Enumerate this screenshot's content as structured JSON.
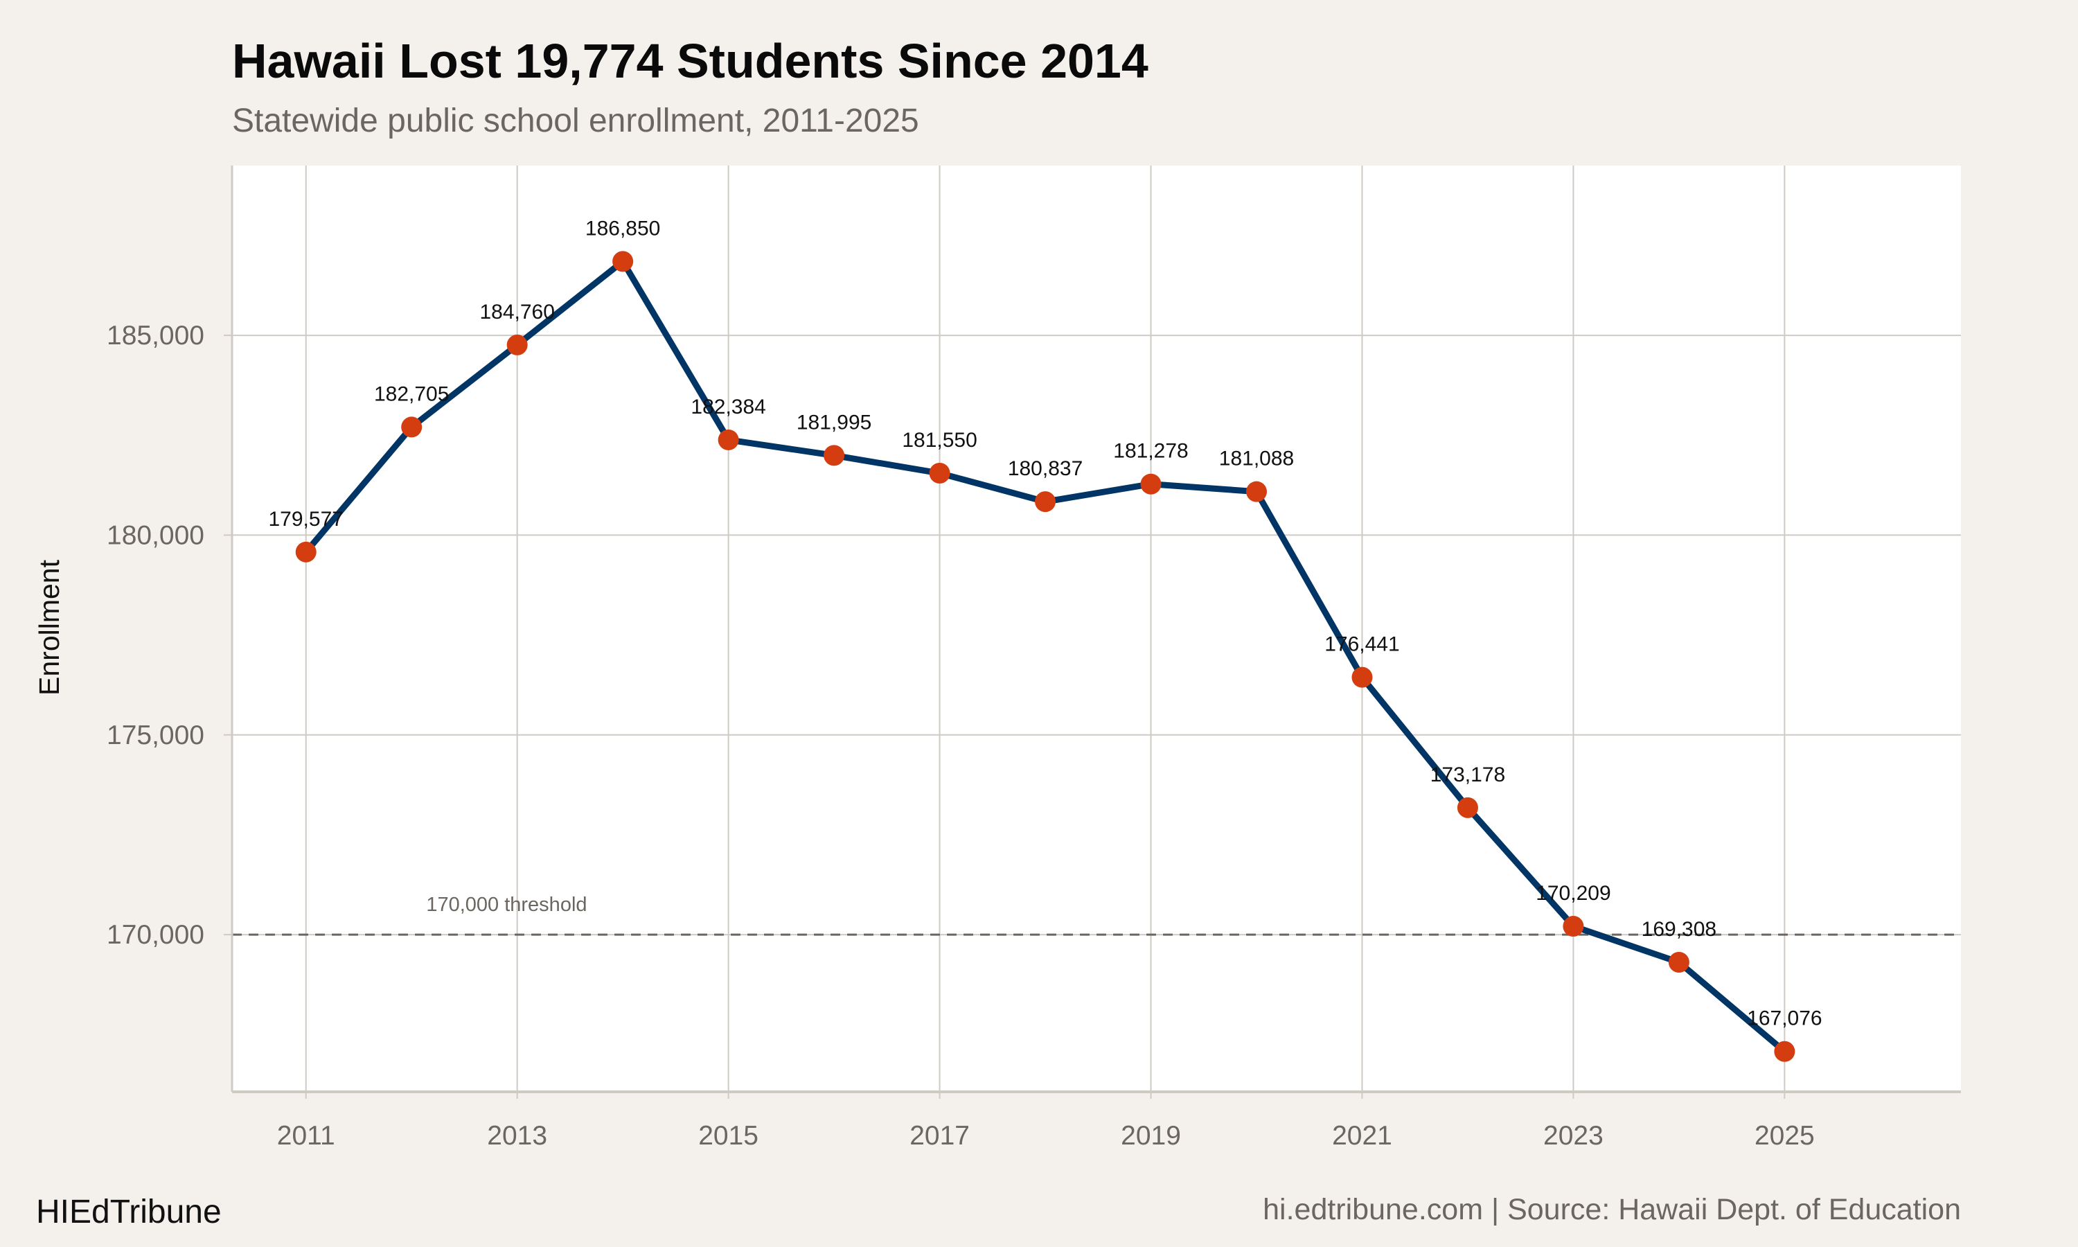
{
  "chart_data": {
    "type": "line",
    "title": "Hawaii Lost 19,774 Students Since 2014",
    "subtitle": "Statewide public school enrollment, 2011-2025",
    "xlabel": "",
    "ylabel": "Enrollment",
    "x": [
      2011,
      2012,
      2013,
      2014,
      2015,
      2016,
      2017,
      2018,
      2019,
      2020,
      2021,
      2022,
      2023,
      2024,
      2025
    ],
    "values": [
      179577,
      182705,
      184760,
      186850,
      182384,
      181995,
      181550,
      180837,
      181278,
      181088,
      176441,
      173178,
      170209,
      169308,
      167076
    ],
    "data_labels": [
      "179,577",
      "182,705",
      "184,760",
      "186,850",
      "182,384",
      "181,995",
      "181,550",
      "180,837",
      "181,278",
      "181,088",
      "176,441",
      "173,178",
      "170,209",
      "169,308",
      "167,076"
    ],
    "xticks": [
      2011,
      2013,
      2015,
      2017,
      2019,
      2021,
      2023,
      2025
    ],
    "xtick_labels": [
      "2011",
      "2013",
      "2015",
      "2017",
      "2019",
      "2021",
      "2023",
      "2025"
    ],
    "yticks": [
      170000,
      175000,
      180000,
      185000
    ],
    "ytick_labels": [
      "170,000",
      "175,000",
      "180,000",
      "185,000"
    ],
    "xlim": [
      2010.3,
      2026.67
    ],
    "ylim": [
      166100,
      189250
    ],
    "grid": true,
    "reference_line": {
      "value": 170000,
      "label": "170,000 threshold",
      "style": "dashed"
    },
    "colors": {
      "line": "#003566",
      "points": "#d43d0f",
      "background": "#f4f1ec",
      "panel": "#ffffff",
      "grid": "#cfcbc4",
      "reference": "#6b6660"
    }
  },
  "footer": {
    "brand": "HIEdTribune",
    "source": "hi.edtribune.com | Source: Hawaii Dept. of Education"
  }
}
